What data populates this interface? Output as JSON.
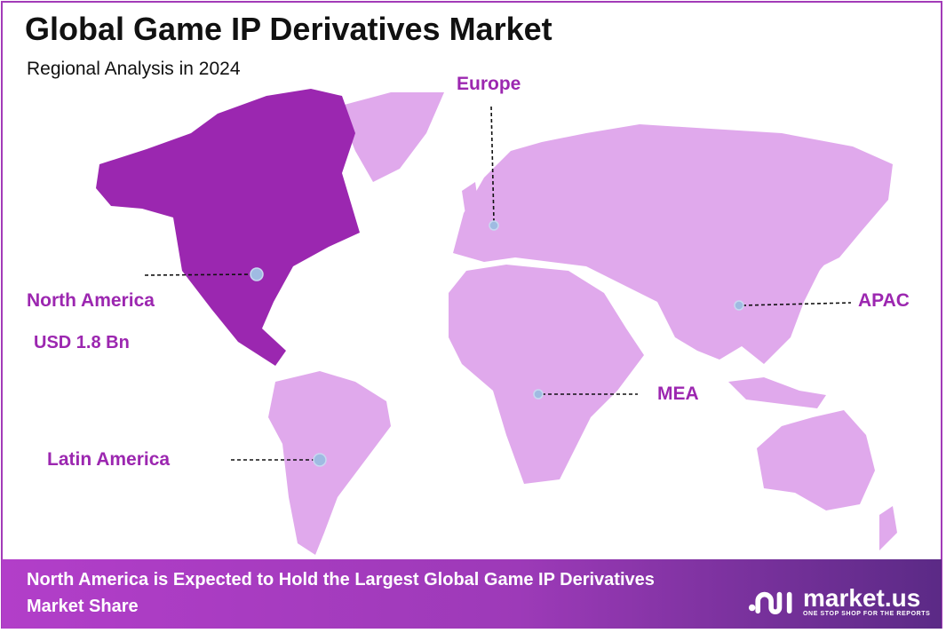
{
  "header": {
    "title": "Global Game IP Derivatives Market",
    "subtitle": "Regional Analysis in 2024"
  },
  "regions": [
    {
      "name": "North America",
      "value": "USD 1.8 Bn",
      "highlighted": true
    },
    {
      "name": "Europe"
    },
    {
      "name": "APAC"
    },
    {
      "name": "MEA"
    },
    {
      "name": "Latin America"
    }
  ],
  "colors": {
    "highlight": "#9b27b0",
    "land": "#e0a9ec",
    "label": "#9c27b0",
    "marker": "#9fbbe2"
  },
  "footer": {
    "text": "North America is Expected to Hold the Largest Global Game IP Derivatives Market Share",
    "brand": "market.us",
    "tagline": "ONE STOP SHOP FOR THE REPORTS"
  }
}
